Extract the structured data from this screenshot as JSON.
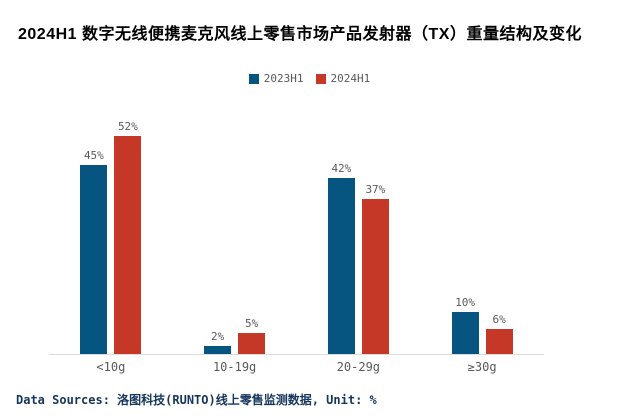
{
  "title": "2024H1 数字无线便携麦克风线上零售市场产品发射器（TX）重量结构及变化",
  "footer": "Data Sources: 洛图科技(RUNTO)线上零售监测数据, Unit: %",
  "colors": {
    "series_2023H1": "#065580",
    "series_2024H1": "#C53828",
    "label_gray": "#595959",
    "axis_line": "#DCDCDC",
    "footer_navy": "#17365D",
    "title_black": "#000000",
    "background": "#FFFFFF"
  },
  "chart_data": {
    "type": "bar",
    "categories": [
      "<10g",
      "10-19g",
      "20-29g",
      "≥30g"
    ],
    "series": [
      {
        "name": "2023H1",
        "color": "#065580",
        "values": [
          45,
          2,
          42,
          10
        ]
      },
      {
        "name": "2024H1",
        "color": "#C53828",
        "values": [
          52,
          5,
          37,
          6
        ]
      }
    ],
    "value_suffix": "%",
    "unit": "%",
    "ylim": [
      0,
      58
    ],
    "grid": false,
    "data_labels": true,
    "legend_position": "top-center",
    "x_axis_line": true
  }
}
